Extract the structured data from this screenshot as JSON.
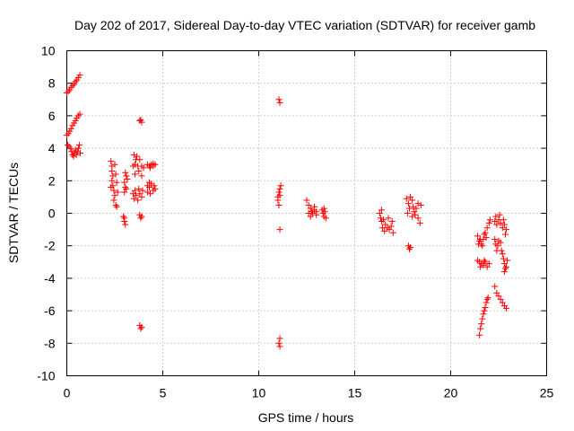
{
  "chart_data": {
    "type": "scatter",
    "title": "Day 202 of 2017, Sidereal Day-to-day VTEC variation (SDTVAR) for receiver gamb",
    "xlabel": "GPS time / hours",
    "ylabel": "SDTVAR / TECUs",
    "xlim": [
      0,
      25
    ],
    "ylim": [
      -10,
      10
    ],
    "xticks": [
      0,
      5,
      10,
      15,
      20,
      25
    ],
    "yticks": [
      -10,
      -8,
      -6,
      -4,
      -2,
      0,
      2,
      4,
      6,
      8,
      10
    ],
    "grid": true,
    "marker": "+",
    "color": "#ff0000",
    "series": [
      {
        "name": "SDTVAR",
        "points": [
          [
            0.0,
            7.4
          ],
          [
            0.08,
            7.5
          ],
          [
            0.15,
            7.6
          ],
          [
            0.22,
            7.75
          ],
          [
            0.3,
            7.85
          ],
          [
            0.38,
            7.95
          ],
          [
            0.45,
            8.1
          ],
          [
            0.52,
            8.2
          ],
          [
            0.6,
            8.35
          ],
          [
            0.68,
            8.5
          ],
          [
            0.0,
            4.8
          ],
          [
            0.08,
            4.9
          ],
          [
            0.15,
            5.05
          ],
          [
            0.22,
            5.2
          ],
          [
            0.3,
            5.4
          ],
          [
            0.38,
            5.55
          ],
          [
            0.45,
            5.7
          ],
          [
            0.52,
            5.85
          ],
          [
            0.6,
            6.0
          ],
          [
            0.68,
            6.1
          ],
          [
            0.05,
            4.2
          ],
          [
            0.12,
            4.1
          ],
          [
            0.2,
            4.0
          ],
          [
            0.25,
            3.8
          ],
          [
            0.3,
            3.6
          ],
          [
            0.35,
            3.5
          ],
          [
            0.4,
            3.7
          ],
          [
            0.45,
            3.9
          ],
          [
            0.5,
            3.6
          ],
          [
            0.55,
            3.8
          ],
          [
            0.6,
            4.0
          ],
          [
            0.65,
            4.2
          ],
          [
            0.7,
            3.7
          ],
          [
            2.3,
            3.2
          ],
          [
            2.35,
            2.9
          ],
          [
            2.35,
            2.6
          ],
          [
            2.4,
            2.3
          ],
          [
            2.35,
            2.0
          ],
          [
            2.4,
            1.7
          ],
          [
            2.45,
            1.4
          ],
          [
            2.5,
            1.1
          ],
          [
            2.45,
            0.8
          ],
          [
            2.55,
            0.5
          ],
          [
            2.6,
            0.4
          ],
          [
            2.5,
            3.0
          ],
          [
            2.55,
            2.4
          ],
          [
            2.6,
            1.9
          ],
          [
            2.65,
            1.3
          ],
          [
            2.3,
            1.6
          ],
          [
            3.0,
            1.9
          ],
          [
            3.05,
            1.6
          ],
          [
            3.0,
            1.3
          ],
          [
            3.1,
            1.5
          ],
          [
            2.95,
            -0.2
          ],
          [
            3.0,
            -0.5
          ],
          [
            3.05,
            -0.7
          ],
          [
            3.0,
            -0.3
          ],
          [
            3.1,
            2.3
          ],
          [
            3.15,
            2.1
          ],
          [
            3.05,
            2.5
          ],
          [
            3.5,
            3.6
          ],
          [
            3.6,
            3.3
          ],
          [
            3.55,
            3.0
          ],
          [
            3.7,
            2.9
          ],
          [
            3.8,
            3.3
          ],
          [
            3.9,
            2.9
          ],
          [
            4.0,
            2.8
          ],
          [
            3.45,
            2.9
          ],
          [
            3.65,
            3.5
          ],
          [
            3.75,
            2.6
          ],
          [
            3.45,
            1.2
          ],
          [
            3.5,
            0.9
          ],
          [
            3.55,
            1.4
          ],
          [
            3.6,
            1.1
          ],
          [
            3.7,
            0.8
          ],
          [
            3.75,
            1.5
          ],
          [
            3.8,
            1.2
          ],
          [
            3.9,
            1.0
          ],
          [
            3.95,
            1.4
          ],
          [
            3.55,
            2.4
          ],
          [
            3.9,
            2.3
          ],
          [
            3.8,
            5.7
          ],
          [
            3.9,
            5.6
          ],
          [
            3.85,
            5.75
          ],
          [
            3.8,
            -0.1
          ],
          [
            3.85,
            -0.3
          ],
          [
            3.9,
            -0.2
          ],
          [
            3.8,
            -6.9
          ],
          [
            3.85,
            -7.1
          ],
          [
            3.9,
            -7.0
          ],
          [
            4.2,
            3.0
          ],
          [
            4.3,
            2.9
          ],
          [
            4.4,
            3.0
          ],
          [
            4.5,
            2.9
          ],
          [
            4.6,
            3.0
          ],
          [
            4.35,
            2.8
          ],
          [
            4.5,
            3.05
          ],
          [
            4.2,
            1.3
          ],
          [
            4.3,
            1.6
          ],
          [
            4.35,
            1.2
          ],
          [
            4.4,
            1.8
          ],
          [
            4.5,
            1.4
          ],
          [
            4.55,
            1.7
          ],
          [
            4.6,
            1.5
          ],
          [
            4.3,
            1.9
          ],
          [
            4.2,
            1.7
          ],
          [
            11.05,
            7.0
          ],
          [
            11.1,
            6.8
          ],
          [
            11.0,
            1.0
          ],
          [
            11.05,
            1.3
          ],
          [
            11.1,
            1.5
          ],
          [
            11.0,
            0.8
          ],
          [
            11.15,
            1.7
          ],
          [
            11.1,
            1.1
          ],
          [
            11.05,
            0.5
          ],
          [
            11.1,
            -1.0
          ],
          [
            11.1,
            -7.7
          ],
          [
            11.05,
            -8.0
          ],
          [
            11.1,
            -8.2
          ],
          [
            12.5,
            0.8
          ],
          [
            12.6,
            0.5
          ],
          [
            12.7,
            0.3
          ],
          [
            12.75,
            0.1
          ],
          [
            12.8,
            0.0
          ],
          [
            12.9,
            0.2
          ],
          [
            12.6,
            0.0
          ],
          [
            12.7,
            -0.2
          ],
          [
            12.9,
            0.4
          ],
          [
            13.0,
            0.1
          ],
          [
            13.0,
            -0.1
          ],
          [
            13.3,
            0.2
          ],
          [
            13.35,
            0.0
          ],
          [
            13.4,
            -0.2
          ],
          [
            13.45,
            0.1
          ],
          [
            13.5,
            -0.3
          ],
          [
            13.4,
            0.3
          ],
          [
            16.3,
            0.0
          ],
          [
            16.35,
            -0.3
          ],
          [
            16.4,
            -0.5
          ],
          [
            16.5,
            -0.4
          ],
          [
            16.6,
            -0.7
          ],
          [
            16.7,
            -0.9
          ],
          [
            16.8,
            -1.0
          ],
          [
            16.9,
            -0.8
          ],
          [
            17.0,
            -1.2
          ],
          [
            16.45,
            -0.9
          ],
          [
            16.55,
            -1.1
          ],
          [
            16.4,
            0.2
          ],
          [
            16.75,
            -0.3
          ],
          [
            16.95,
            -0.5
          ],
          [
            17.7,
            0.9
          ],
          [
            17.8,
            0.6
          ],
          [
            17.85,
            0.3
          ],
          [
            17.9,
            1.0
          ],
          [
            18.0,
            0.8
          ],
          [
            18.05,
            0.4
          ],
          [
            18.1,
            0.1
          ],
          [
            18.15,
            -0.1
          ],
          [
            18.2,
            0.3
          ],
          [
            18.3,
            -0.3
          ],
          [
            18.4,
            -0.6
          ],
          [
            18.3,
            0.6
          ],
          [
            18.45,
            0.5
          ],
          [
            17.75,
            0.0
          ],
          [
            18.0,
            -0.2
          ],
          [
            17.8,
            -2.0
          ],
          [
            17.85,
            -2.2
          ],
          [
            17.9,
            -2.1
          ],
          [
            21.4,
            -1.4
          ],
          [
            21.5,
            -1.7
          ],
          [
            21.6,
            -1.9
          ],
          [
            21.7,
            -1.6
          ],
          [
            21.8,
            -1.2
          ],
          [
            21.9,
            -0.9
          ],
          [
            22.0,
            -0.6
          ],
          [
            22.05,
            -0.4
          ],
          [
            21.45,
            -1.9
          ],
          [
            21.55,
            -1.6
          ],
          [
            21.65,
            -2.0
          ],
          [
            21.75,
            -1.3
          ],
          [
            21.85,
            -1.5
          ],
          [
            21.4,
            -2.9
          ],
          [
            21.5,
            -3.0
          ],
          [
            21.6,
            -3.1
          ],
          [
            21.7,
            -3.2
          ],
          [
            21.8,
            -3.0
          ],
          [
            21.9,
            -3.3
          ],
          [
            22.0,
            -3.1
          ],
          [
            21.55,
            -3.3
          ],
          [
            21.75,
            -2.9
          ],
          [
            21.5,
            -7.5
          ],
          [
            21.55,
            -7.1
          ],
          [
            21.6,
            -6.8
          ],
          [
            21.65,
            -6.5
          ],
          [
            21.7,
            -6.2
          ],
          [
            21.75,
            -6.0
          ],
          [
            21.8,
            -5.8
          ],
          [
            21.85,
            -5.5
          ],
          [
            21.9,
            -5.3
          ],
          [
            21.95,
            -5.2
          ],
          [
            22.3,
            -0.5
          ],
          [
            22.4,
            -0.7
          ],
          [
            22.5,
            -0.4
          ],
          [
            22.6,
            -0.6
          ],
          [
            22.7,
            -0.9
          ],
          [
            22.8,
            -0.7
          ],
          [
            22.9,
            -1.0
          ],
          [
            22.85,
            -1.3
          ],
          [
            22.35,
            -0.2
          ],
          [
            22.55,
            -0.1
          ],
          [
            22.75,
            -0.4
          ],
          [
            22.3,
            -1.6
          ],
          [
            22.35,
            -1.9
          ],
          [
            22.4,
            -2.3
          ],
          [
            22.45,
            -2.0
          ],
          [
            22.5,
            -1.7
          ],
          [
            22.6,
            -1.8
          ],
          [
            22.65,
            -2.3
          ],
          [
            22.7,
            -2.5
          ],
          [
            22.75,
            -2.8
          ],
          [
            22.8,
            -3.1
          ],
          [
            22.85,
            -3.4
          ],
          [
            22.9,
            -3.3
          ],
          [
            22.95,
            -2.9
          ],
          [
            22.8,
            -3.6
          ],
          [
            22.3,
            -4.5
          ],
          [
            22.4,
            -4.9
          ],
          [
            22.5,
            -5.1
          ],
          [
            22.6,
            -5.3
          ],
          [
            22.7,
            -5.5
          ],
          [
            22.8,
            -5.7
          ],
          [
            22.9,
            -5.85
          ]
        ]
      }
    ]
  }
}
